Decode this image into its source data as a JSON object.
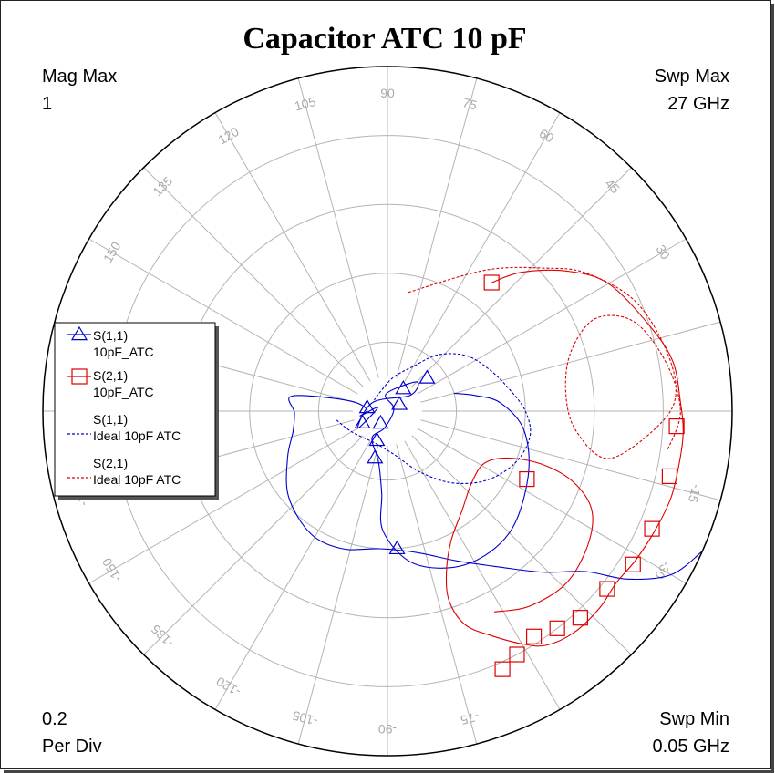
{
  "title": "Capacitor ATC 10 pF",
  "corners": {
    "top_left": [
      "Mag Max",
      "1"
    ],
    "top_right": [
      "Swp Max",
      "27  GHz"
    ],
    "bottom_left": [
      "0.2",
      "Per Div"
    ],
    "bottom_right": [
      "Swp Min",
      "0.05  GHz"
    ]
  },
  "chart_data": {
    "type": "polar",
    "mag_max": 1,
    "per_div": 0.2,
    "sweep": {
      "min_ghz": 0.05,
      "max_ghz": 27
    },
    "angle_labels": [
      {
        "deg": 90,
        "text": "90"
      },
      {
        "deg": 75,
        "text": "75"
      },
      {
        "deg": 60,
        "text": "60"
      },
      {
        "deg": 45,
        "text": "45"
      },
      {
        "deg": 30,
        "text": "30"
      },
      {
        "deg": 105,
        "text": "105"
      },
      {
        "deg": 120,
        "text": "120"
      },
      {
        "deg": 135,
        "text": "135"
      },
      {
        "deg": 150,
        "text": "150"
      },
      {
        "deg": -15,
        "text": "-15"
      },
      {
        "deg": -30,
        "text": "-30"
      },
      {
        "deg": -75,
        "text": "-75"
      },
      {
        "deg": -90,
        "text": "-90"
      },
      {
        "deg": -105,
        "text": "-105"
      },
      {
        "deg": -120,
        "text": "-120"
      },
      {
        "deg": -135,
        "text": "-135"
      },
      {
        "deg": -150,
        "text": "-150"
      },
      {
        "deg": -165,
        "text": "-165"
      }
    ],
    "legend": [
      {
        "line1": "S(1,1)",
        "line2": "10pF_ATC",
        "color": "#0000cc",
        "style": "solid",
        "marker": "triangle"
      },
      {
        "line1": "S(2,1)",
        "line2": "10pF_ATC",
        "color": "#dd0000",
        "style": "solid",
        "marker": "square"
      },
      {
        "line1": "S(1,1)",
        "line2": "Ideal 10pF ATC",
        "color": "#0000cc",
        "style": "dashed",
        "marker": "none"
      },
      {
        "line1": "S(2,1)",
        "line2": "Ideal 10pF ATC",
        "color": "#dd0000",
        "style": "dashed",
        "marker": "none"
      }
    ],
    "series": [
      {
        "color": "#0000cc",
        "style": "solid",
        "marker": "triangle",
        "points": [
          [
            1.0,
            -24
          ],
          [
            0.95,
            -30
          ],
          [
            0.85,
            -35
          ],
          [
            0.74,
            -39
          ],
          [
            0.65,
            -46
          ],
          [
            0.56,
            -54
          ],
          [
            0.48,
            -65
          ],
          [
            0.42,
            -78
          ],
          [
            0.4,
            -93
          ],
          [
            0.42,
            -108
          ],
          [
            0.42,
            -122
          ],
          [
            0.38,
            -139
          ],
          [
            0.32,
            -155
          ],
          [
            0.28,
            -168
          ],
          [
            0.27,
            -179
          ],
          [
            0.28,
            171
          ],
          [
            0.12,
            165
          ],
          [
            0.06,
            175
          ],
          [
            0.08,
            -170
          ],
          [
            0.03,
            160
          ],
          [
            0.1,
            -150
          ],
          [
            0.05,
            150
          ],
          [
            0.08,
            35
          ],
          [
            0.12,
            45
          ],
          [
            0.05,
            95
          ],
          [
            0.02,
            20
          ],
          [
            0.05,
            -100
          ],
          [
            0.09,
            -120
          ],
          [
            0.15,
            -100
          ],
          [
            0.24,
            -94
          ],
          [
            0.35,
            -92
          ],
          [
            0.45,
            -80
          ],
          [
            0.5,
            -63
          ],
          [
            0.5,
            -45
          ],
          [
            0.45,
            -25
          ],
          [
            0.4,
            -8
          ],
          [
            0.33,
            4
          ],
          [
            0.26,
            10
          ],
          [
            0.2,
            15
          ]
        ],
        "marker_points": [
          [
            0.4,
            -86
          ],
          [
            0.15,
            40
          ],
          [
            0.08,
            55
          ],
          [
            0.04,
            30
          ],
          [
            0.08,
            -155
          ],
          [
            0.04,
            -120
          ],
          [
            0.06,
            170
          ],
          [
            0.09,
            -110
          ],
          [
            0.14,
            -105
          ]
        ]
      },
      {
        "color": "#dd0000",
        "style": "solid",
        "marker": "square",
        "points": [
          [
            0.48,
            51
          ],
          [
            0.56,
            46
          ],
          [
            0.66,
            38
          ],
          [
            0.74,
            30
          ],
          [
            0.8,
            18
          ],
          [
            0.84,
            10
          ],
          [
            0.85,
            2
          ],
          [
            0.86,
            -4
          ],
          [
            0.86,
            -10
          ],
          [
            0.86,
            -17
          ],
          [
            0.85,
            -24
          ],
          [
            0.84,
            -31
          ],
          [
            0.83,
            -37
          ],
          [
            0.84,
            -43
          ],
          [
            0.84,
            -50
          ],
          [
            0.82,
            -56
          ],
          [
            0.78,
            -60
          ],
          [
            0.72,
            -65
          ],
          [
            0.66,
            -70
          ],
          [
            0.58,
            -72
          ],
          [
            0.5,
            -70
          ],
          [
            0.42,
            -64
          ],
          [
            0.36,
            -53
          ],
          [
            0.32,
            -40
          ],
          [
            0.32,
            -28
          ],
          [
            0.38,
            -21
          ],
          [
            0.48,
            -19
          ],
          [
            0.58,
            -21
          ],
          [
            0.66,
            -26
          ],
          [
            0.7,
            -34
          ],
          [
            0.72,
            -44
          ],
          [
            0.7,
            -54
          ],
          [
            0.66,
            -62
          ]
        ],
        "marker_points": [
          [
            0.48,
            51
          ],
          [
            0.84,
            -3
          ],
          [
            0.84,
            -13
          ],
          [
            0.84,
            -24
          ],
          [
            0.84,
            -32
          ],
          [
            0.82,
            -39
          ],
          [
            0.82,
            -47
          ],
          [
            0.8,
            -52
          ],
          [
            0.78,
            -57
          ],
          [
            0.8,
            -62
          ],
          [
            0.82,
            -66
          ],
          [
            0.45,
            -26
          ]
        ]
      },
      {
        "color": "#0000cc",
        "style": "dashed",
        "marker": "none",
        "points": [
          [
            0.15,
            -170
          ],
          [
            0.12,
            -150
          ],
          [
            0.1,
            -110
          ],
          [
            0.13,
            -80
          ],
          [
            0.2,
            -62
          ],
          [
            0.28,
            -48
          ],
          [
            0.35,
            -35
          ],
          [
            0.4,
            -22
          ],
          [
            0.42,
            -10
          ],
          [
            0.4,
            0
          ],
          [
            0.36,
            10
          ],
          [
            0.32,
            22
          ],
          [
            0.28,
            35
          ],
          [
            0.22,
            48
          ],
          [
            0.15,
            60
          ],
          [
            0.1,
            80
          ],
          [
            0.06,
            110
          ],
          [
            0.05,
            140
          ]
        ]
      },
      {
        "color": "#dd0000",
        "style": "dashed",
        "marker": "none",
        "points": [
          [
            0.35,
            80
          ],
          [
            0.5,
            55
          ],
          [
            0.62,
            42
          ],
          [
            0.7,
            35
          ],
          [
            0.78,
            25
          ],
          [
            0.82,
            15
          ],
          [
            0.84,
            5
          ],
          [
            0.8,
            -2
          ],
          [
            0.66,
            -12
          ],
          [
            0.55,
            -6
          ],
          [
            0.52,
            6
          ],
          [
            0.56,
            18
          ],
          [
            0.66,
            24
          ],
          [
            0.76,
            20
          ],
          [
            0.82,
            10
          ],
          [
            0.85,
            0
          ],
          [
            0.82,
            -8
          ]
        ]
      }
    ]
  }
}
